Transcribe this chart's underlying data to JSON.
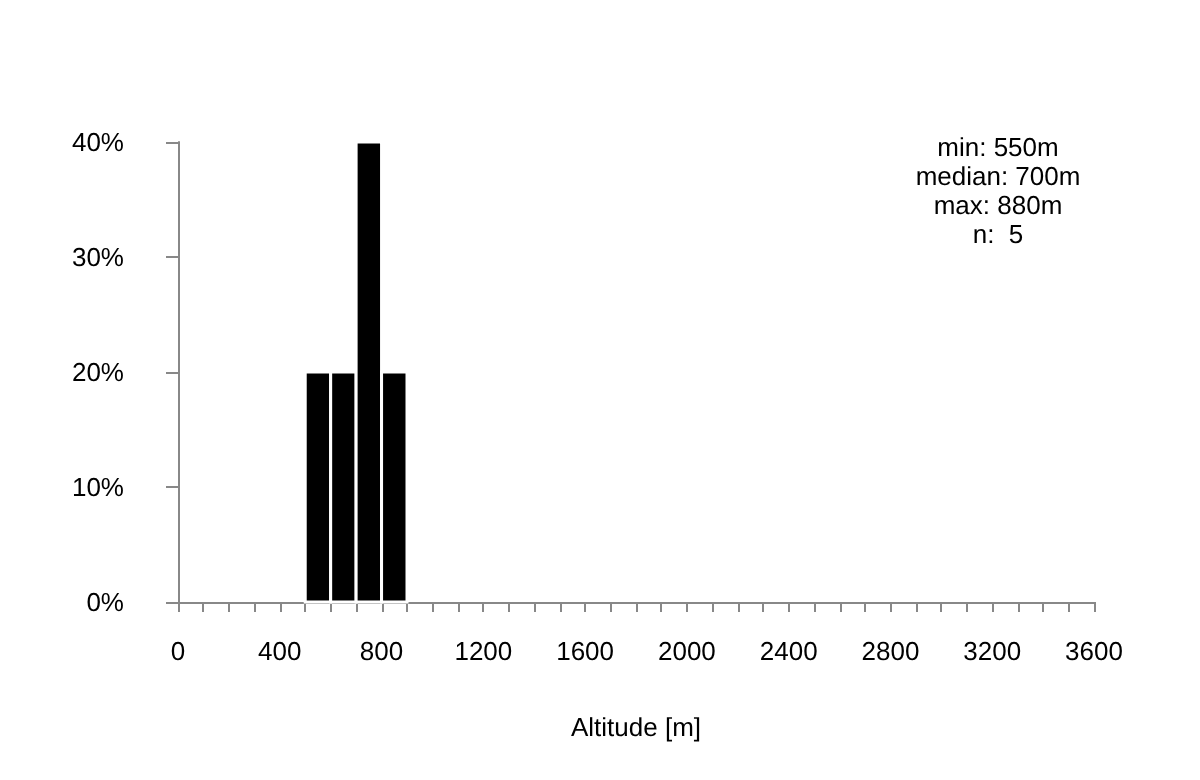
{
  "chart_data": {
    "type": "histogram",
    "xlabel": "Altitude [m]",
    "bins": [
      500,
      600,
      700,
      800,
      900
    ],
    "values": [
      20,
      20,
      40,
      20
    ],
    "color": "#000000",
    "xlim": [
      0,
      3600
    ],
    "xticks": [
      0,
      {
        "value": 100,
        "label": null
      },
      {
        "value": 200,
        "label": null
      },
      {
        "value": 300,
        "label": null
      },
      400,
      {
        "value": 500,
        "label": null
      },
      {
        "value": 600,
        "label": null
      },
      {
        "value": 700,
        "label": null
      },
      800,
      {
        "value": 900,
        "label": null
      },
      {
        "value": 1000,
        "label": null
      },
      {
        "value": 1100,
        "label": null
      },
      1200,
      {
        "value": 1300,
        "label": null
      },
      {
        "value": 1400,
        "label": null
      },
      {
        "value": 1500,
        "label": null
      },
      1600,
      {
        "value": 1700,
        "label": null
      },
      {
        "value": 1800,
        "label": null
      },
      {
        "value": 1900,
        "label": null
      },
      2000,
      {
        "value": 2100,
        "label": null
      },
      {
        "value": 2200,
        "label": null
      },
      {
        "value": 2300,
        "label": null
      },
      2400,
      {
        "value": 2500,
        "label": null
      },
      {
        "value": 2600,
        "label": null
      },
      {
        "value": 2700,
        "label": null
      },
      2800,
      {
        "value": 2900,
        "label": null
      },
      {
        "value": 3000,
        "label": null
      },
      {
        "value": 3100,
        "label": null
      },
      3200,
      {
        "value": 3300,
        "label": null
      },
      {
        "value": 3400,
        "label": null
      },
      {
        "value": 3500,
        "label": null
      },
      3600
    ],
    "ylim": [
      0,
      40
    ],
    "yticks": [
      {
        "value": 0,
        "label": "0%"
      },
      {
        "value": 10,
        "label": "10%"
      },
      {
        "value": 20,
        "label": "20%"
      },
      {
        "value": 30,
        "label": "30%"
      },
      {
        "value": 40,
        "label": "40%"
      }
    ],
    "annotations": [
      "min: 550m",
      "median: 700m",
      "max: 880m",
      "n:  5"
    ],
    "grid": false
  }
}
